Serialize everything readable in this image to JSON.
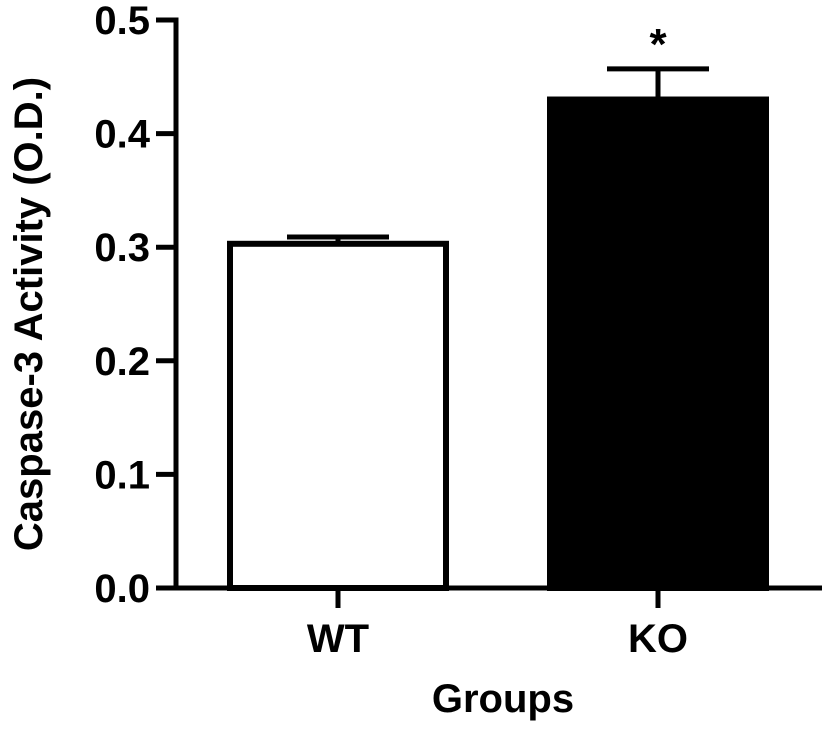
{
  "chart_data": {
    "type": "bar",
    "title": "",
    "xlabel": "Groups",
    "ylabel": "Caspase-3 Activity (O.D.)",
    "categories": [
      "WT",
      "KO"
    ],
    "values": [
      0.303,
      0.43
    ],
    "errors": [
      0.006,
      0.027
    ],
    "bar_fill_colors": [
      "#ffffff",
      "#000000"
    ],
    "bar_stroke_color": "#000000",
    "ylim": [
      0,
      0.5
    ],
    "yticks": [
      0.0,
      0.1,
      0.2,
      0.3,
      0.4,
      0.5
    ],
    "ytick_labels": [
      "0.0",
      "0.1",
      "0.2",
      "0.3",
      "0.4",
      "0.5"
    ],
    "grid": false,
    "legend": "none",
    "annotations": [
      {
        "category": "KO",
        "text": "*"
      }
    ]
  }
}
